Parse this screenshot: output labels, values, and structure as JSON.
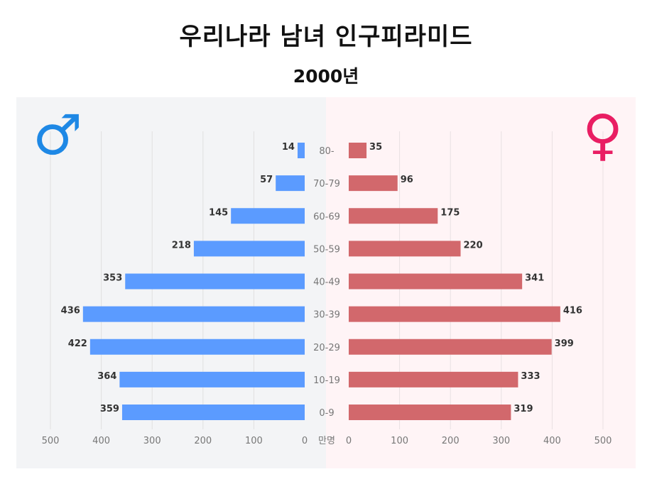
{
  "title": "우리나라 남녀 인구피라미드",
  "subtitle": "2000년",
  "unit_label": "만명",
  "male_symbol": "♂",
  "female_symbol": "♀",
  "colors": {
    "male_bar": "#5b9bff",
    "female_bar": "#d2686c",
    "male_bg": "#f3f4f6",
    "female_bg": "#fff4f6",
    "male_symbol": "#1e88e5",
    "female_symbol": "#e91e63"
  },
  "chart_data": {
    "type": "bar",
    "categories": [
      "80-",
      "70-79",
      "60-69",
      "50-59",
      "40-49",
      "30-39",
      "20-29",
      "10-19",
      "0-9"
    ],
    "series": [
      {
        "values": [
          14,
          57,
          145,
          218,
          353,
          436,
          422,
          364,
          359
        ]
      },
      {
        "values": [
          35,
          96,
          175,
          220,
          341,
          416,
          399,
          333,
          319
        ]
      }
    ],
    "xlim": [
      0,
      500
    ],
    "xticks": [
      0,
      100,
      200,
      300,
      400,
      500
    ],
    "grid": true
  }
}
